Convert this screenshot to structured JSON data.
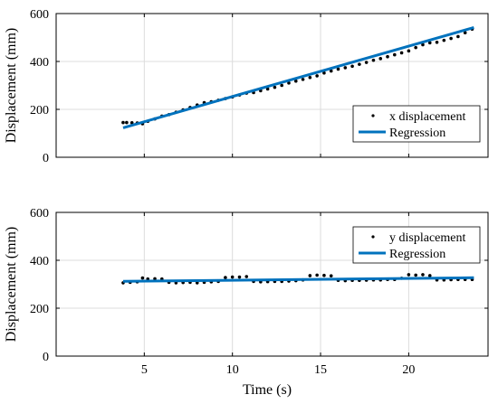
{
  "chart_data": [
    {
      "type": "scatter",
      "ylabel": "Displacement (mm)",
      "xlabel": "",
      "xlim": [
        0,
        24.5
      ],
      "ylim": [
        0,
        600
      ],
      "xticks": [
        5,
        10,
        15,
        20
      ],
      "xtick_labels": [],
      "yticks": [
        0,
        200,
        400,
        600
      ],
      "ytick_labels": [
        "0",
        "200",
        "400",
        "600"
      ],
      "grid": true,
      "legend_position": "right",
      "series": [
        {
          "name": "x displacement",
          "type": "scatter",
          "color": "#000000",
          "x": [
            3.8,
            4.0,
            4.3,
            4.6,
            4.9,
            5.2,
            5.6,
            6.0,
            6.4,
            6.8,
            7.2,
            7.6,
            8.0,
            8.4,
            8.8,
            9.2,
            9.6,
            10.0,
            10.4,
            10.8,
            11.2,
            11.6,
            12.0,
            12.4,
            12.8,
            13.2,
            13.6,
            14.0,
            14.4,
            14.8,
            15.2,
            15.6,
            16.0,
            16.4,
            16.8,
            17.2,
            17.6,
            18.0,
            18.4,
            18.8,
            19.2,
            19.6,
            20.0,
            20.4,
            20.8,
            21.2,
            21.6,
            22.0,
            22.4,
            22.8,
            23.2,
            23.6
          ],
          "y": [
            145,
            145,
            144,
            143,
            140,
            150,
            160,
            172,
            178,
            188,
            198,
            208,
            218,
            228,
            232,
            238,
            245,
            252,
            260,
            268,
            270,
            278,
            285,
            292,
            300,
            310,
            318,
            325,
            333,
            340,
            352,
            360,
            368,
            374,
            380,
            388,
            396,
            405,
            412,
            420,
            428,
            436,
            444,
            458,
            470,
            478,
            480,
            488,
            496,
            504,
            520,
            535
          ]
        },
        {
          "name": "Regression",
          "type": "line",
          "color": "#0072BD",
          "x": [
            3.8,
            23.7
          ],
          "y": [
            123,
            542
          ]
        }
      ]
    },
    {
      "type": "scatter",
      "ylabel": "Displacement (mm)",
      "xlabel": "Time (s)",
      "xlim": [
        0,
        24.5
      ],
      "ylim": [
        0,
        600
      ],
      "xticks": [
        5,
        10,
        15,
        20
      ],
      "xtick_labels": [
        "5",
        "10",
        "15",
        "20"
      ],
      "yticks": [
        0,
        200,
        400,
        600
      ],
      "ytick_labels": [
        "0",
        "200",
        "400",
        "600"
      ],
      "grid": true,
      "legend_position": "top-right",
      "series": [
        {
          "name": "y displacement",
          "type": "scatter",
          "color": "#000000",
          "x": [
            3.8,
            4.2,
            4.6,
            4.9,
            5.2,
            5.6,
            6.0,
            6.4,
            6.8,
            7.2,
            7.6,
            8.0,
            8.4,
            8.8,
            9.2,
            9.6,
            10.0,
            10.4,
            10.8,
            11.2,
            11.6,
            12.0,
            12.4,
            12.8,
            13.2,
            13.6,
            14.0,
            14.4,
            14.8,
            15.2,
            15.6,
            16.0,
            16.4,
            16.8,
            17.2,
            17.6,
            18.0,
            18.4,
            18.8,
            19.2,
            19.6,
            20.0,
            20.4,
            20.8,
            21.2,
            21.6,
            22.0,
            22.4,
            22.8,
            23.2,
            23.6
          ],
          "y": [
            306,
            308,
            310,
            326,
            322,
            323,
            322,
            308,
            306,
            307,
            308,
            306,
            308,
            310,
            312,
            328,
            330,
            330,
            332,
            312,
            310,
            311,
            312,
            312,
            313,
            315,
            318,
            336,
            338,
            337,
            335,
            316,
            315,
            316,
            316,
            317,
            318,
            318,
            320,
            320,
            325,
            340,
            338,
            340,
            336,
            318,
            318,
            319,
            320,
            320,
            320
          ]
        },
        {
          "name": "Regression",
          "type": "line",
          "color": "#0072BD",
          "x": [
            3.8,
            23.7
          ],
          "y": [
            312,
            327
          ]
        }
      ]
    }
  ]
}
